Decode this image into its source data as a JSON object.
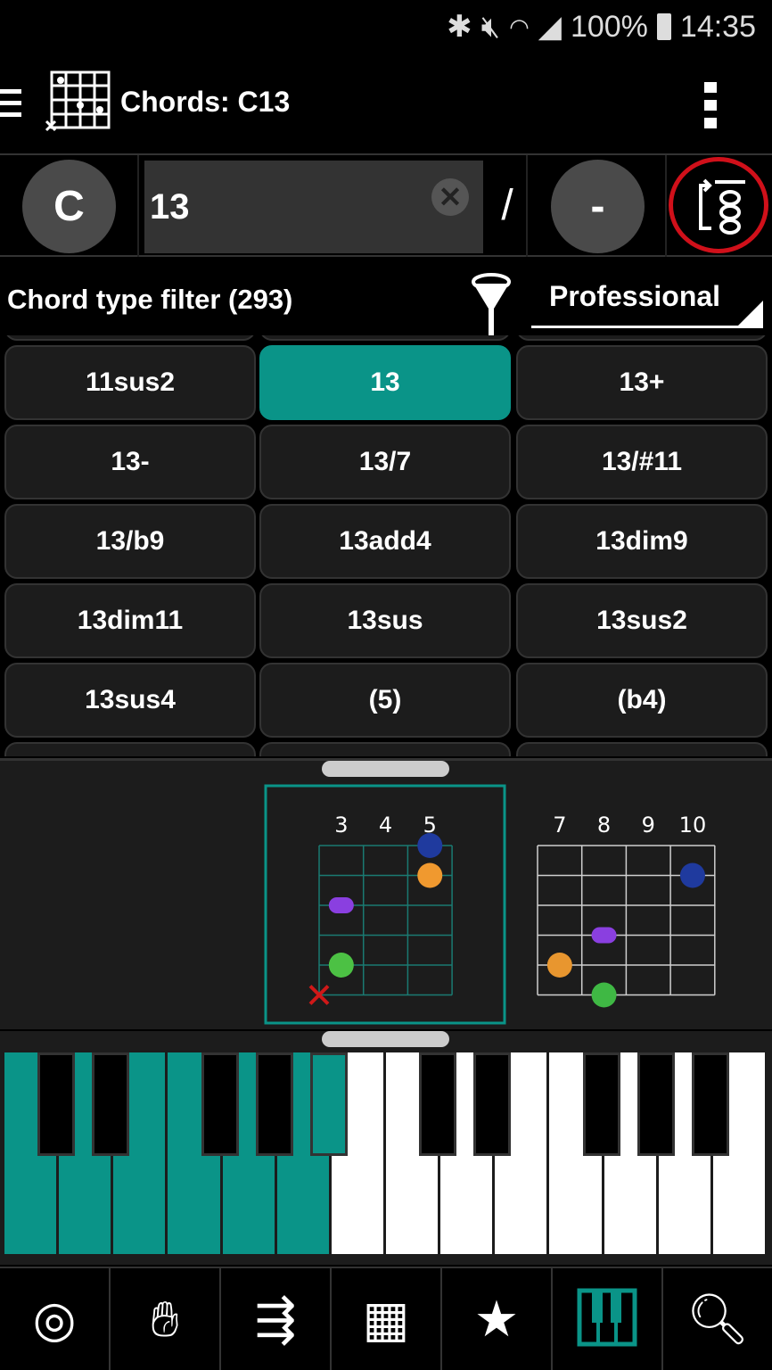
{
  "status_bar": {
    "battery": "100%",
    "time": "14:35",
    "icons": [
      "bluetooth-icon",
      "mute-icon",
      "wifi-icon",
      "signal-icon",
      "battery-icon"
    ]
  },
  "header": {
    "title": "Chords: C13",
    "icons": [
      "menu-icon",
      "chord-grid-icon",
      "overflow-menu-icon"
    ]
  },
  "selector": {
    "root": "C",
    "chord_type": "13",
    "slash": "/",
    "bass": "-"
  },
  "filter": {
    "label": "Chord type filter (293)",
    "level": "Professional"
  },
  "chord_types": [
    "11sus2",
    "13",
    "13+",
    "13-",
    "13/7",
    "13/#11",
    "13/b9",
    "13add4",
    "13dim9",
    "13dim11",
    "13sus",
    "13sus2",
    "13sus4",
    "(5)",
    "(b4)"
  ],
  "selected_chord_type": "13",
  "diagrams": [
    {
      "frets": [
        "3",
        "4",
        "5"
      ],
      "selected": true,
      "dots": [
        {
          "string": 0,
          "fret": 5,
          "color": "#1f3a9e"
        },
        {
          "string": 1,
          "fret": 5,
          "color": "#f0992f"
        },
        {
          "string": 2,
          "fret": 3,
          "color": "#8a3fe0",
          "shape": "pill"
        },
        {
          "string": 4,
          "fret": 3,
          "color": "#4cc144"
        }
      ],
      "muted": [
        5
      ]
    },
    {
      "frets": [
        "7",
        "8",
        "9",
        "10"
      ],
      "selected": false,
      "dots": [
        {
          "string": 1,
          "fret": 10,
          "color": "#1f3a9e"
        },
        {
          "string": 3,
          "fret": 8,
          "color": "#8a3fe0",
          "shape": "pill"
        },
        {
          "string": 4,
          "fret": 7,
          "color": "#e8962f"
        },
        {
          "string": 5,
          "fret": 8,
          "color": "#3fb844"
        }
      ],
      "muted": []
    }
  ],
  "piano": {
    "white_keys": 14,
    "highlighted_white": [
      0,
      1,
      2,
      3,
      4,
      5
    ],
    "highlighted_black": [
      4
    ],
    "accent": "#0a9488"
  },
  "bottom_nav": [
    "metronome-icon",
    "hand-icon",
    "progression-icon",
    "grid-icon",
    "star-icon",
    "piano-icon",
    "search-file-icon"
  ],
  "active_nav": "piano-icon"
}
